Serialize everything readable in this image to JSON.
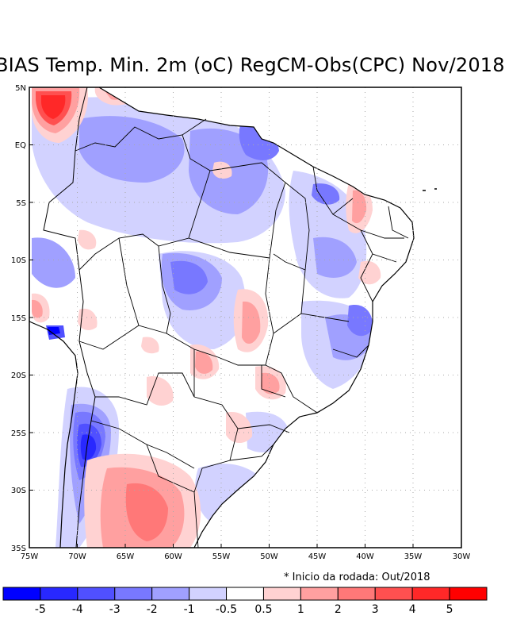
{
  "title": "BIAS Temp. Min. 2m (oC) RegCM-Obs(CPC) Nov/2018",
  "map": {
    "lat_labels": [
      "5N",
      "EQ",
      "5S",
      "10S",
      "15S",
      "20S",
      "25S",
      "30S",
      "35S"
    ],
    "lon_labels": [
      "75W",
      "70W",
      "65W",
      "60W",
      "55W",
      "50W",
      "45W",
      "40W",
      "35W",
      "30W"
    ],
    "lat_range": [
      -35,
      5
    ],
    "lon_range": [
      -75,
      -30
    ]
  },
  "note": "* Inicio da rodada: Out/2018",
  "colorbar": {
    "labels": [
      "-5",
      "-4",
      "-3",
      "-2",
      "-1",
      "-0.5",
      "0.5",
      "1",
      "2",
      "3",
      "4",
      "5"
    ],
    "colors": [
      "#0000ff",
      "#2828ff",
      "#5050ff",
      "#7878ff",
      "#a0a0ff",
      "#d2d2ff",
      "#ffffff",
      "#ffd2d2",
      "#ffa0a0",
      "#ff7878",
      "#ff5050",
      "#ff2828",
      "#ff0000"
    ]
  }
}
